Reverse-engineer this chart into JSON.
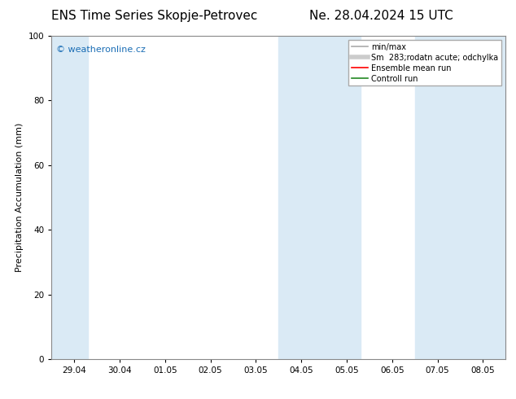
{
  "title_left": "ENS Time Series Skopje-Petrovec",
  "title_right": "Ne. 28.04.2024 15 UTC",
  "ylabel": "Precipitation Accumulation (mm)",
  "ylim": [
    0,
    100
  ],
  "yticks": [
    0,
    20,
    40,
    60,
    80,
    100
  ],
  "x_tick_labels": [
    "29.04",
    "30.04",
    "01.05",
    "02.05",
    "03.05",
    "04.05",
    "05.05",
    "06.05",
    "07.05",
    "08.05"
  ],
  "x_tick_positions": [
    0,
    1,
    2,
    3,
    4,
    5,
    6,
    7,
    8,
    9
  ],
  "shaded_regions": [
    {
      "xmin": -0.5,
      "xmax": 0.3,
      "color": "#daeaf5"
    },
    {
      "xmin": 4.5,
      "xmax": 6.3,
      "color": "#daeaf5"
    },
    {
      "xmin": 7.5,
      "xmax": 9.5,
      "color": "#daeaf5"
    }
  ],
  "watermark_text": "© weatheronline.cz",
  "watermark_color": "#1a6db5",
  "background_color": "#ffffff",
  "plot_bg_color": "#ffffff",
  "legend_items": [
    {
      "label": "min/max",
      "color": "#aaaaaa",
      "lw": 1.2,
      "style": "solid"
    },
    {
      "label": "Sm  283;rodatn acute; odchylka",
      "color": "#cccccc",
      "lw": 4,
      "style": "solid"
    },
    {
      "label": "Ensemble mean run",
      "color": "#ff0000",
      "lw": 1.2,
      "style": "solid"
    },
    {
      "label": "Controll run",
      "color": "#228822",
      "lw": 1.2,
      "style": "solid"
    }
  ],
  "title_fontsize": 11,
  "axis_fontsize": 8,
  "tick_fontsize": 7.5,
  "watermark_fontsize": 8,
  "legend_fontsize": 7
}
